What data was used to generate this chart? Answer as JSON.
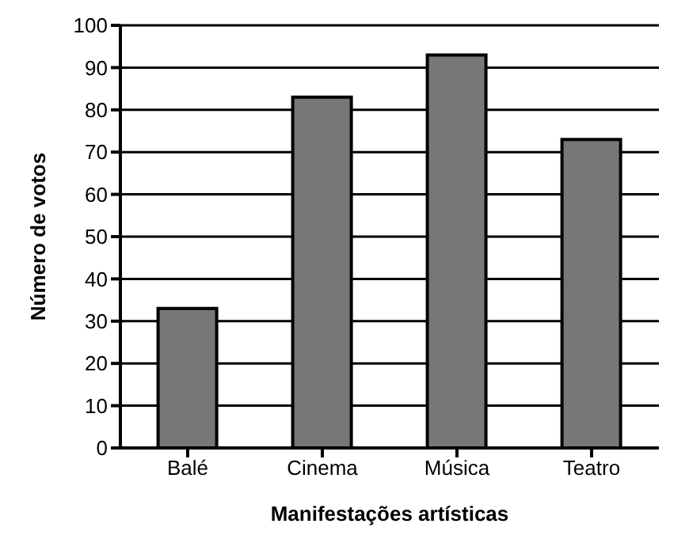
{
  "chart_data": {
    "type": "bar",
    "xlabel": "Manifestações artísticas",
    "ylabel": "Número de votos",
    "categories": [
      "Balé",
      "Cinema",
      "Música",
      "Teatro"
    ],
    "values": [
      33,
      83,
      93,
      73
    ],
    "color": "#777777",
    "ylim": [
      0,
      100
    ],
    "yticks": [
      0,
      10,
      20,
      30,
      40,
      50,
      60,
      70,
      80,
      90,
      100
    ],
    "grid": "y"
  }
}
